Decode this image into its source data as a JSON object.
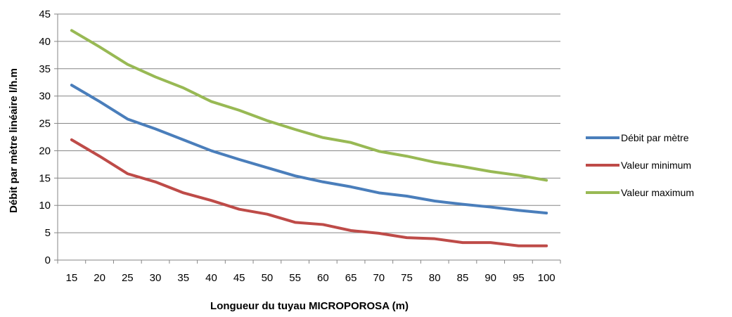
{
  "chart_data": {
    "type": "line",
    "title": "",
    "xlabel": "Longueur du tuyau MICROPOROSA  (m)",
    "ylabel": "Débit par mètre linéaire l/h.m",
    "x": [
      15,
      20,
      25,
      30,
      35,
      40,
      45,
      50,
      55,
      60,
      65,
      70,
      75,
      80,
      85,
      90,
      95,
      100
    ],
    "ylim": [
      0,
      45
    ],
    "yticks": [
      0,
      5,
      10,
      15,
      20,
      25,
      30,
      35,
      40,
      45
    ],
    "grid": "horizontal",
    "legend_position": "right",
    "series": [
      {
        "name": "Débit par mètre",
        "color": "#4a7ebb",
        "values": [
          32,
          29,
          25.8,
          24,
          22,
          20,
          18.4,
          16.9,
          15.4,
          14.3,
          13.4,
          12.3,
          11.7,
          10.8,
          10.2,
          9.7,
          9.1,
          8.6
        ]
      },
      {
        "name": "Valeur minimum",
        "color": "#be4b48",
        "values": [
          22,
          19,
          15.8,
          14.3,
          12.3,
          10.9,
          9.3,
          8.4,
          6.9,
          6.5,
          5.4,
          4.9,
          4.1,
          3.9,
          3.2,
          3.2,
          2.6,
          2.6
        ]
      },
      {
        "name": "Valeur maximum",
        "color": "#98b954",
        "values": [
          42,
          39,
          35.8,
          33.5,
          31.5,
          29,
          27.4,
          25.5,
          23.9,
          22.4,
          21.5,
          19.9,
          19,
          17.9,
          17.1,
          16.2,
          15.5,
          14.6
        ]
      }
    ]
  }
}
